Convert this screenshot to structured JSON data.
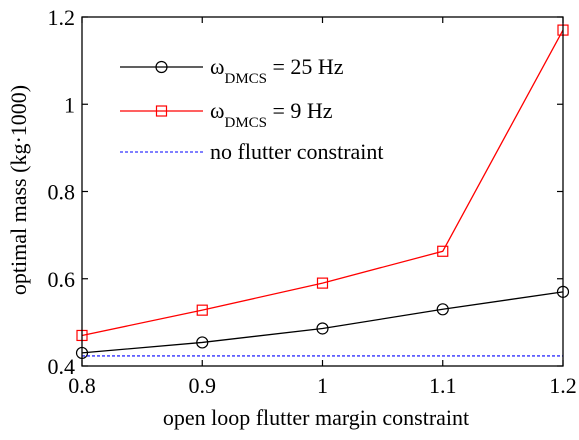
{
  "chart_data": {
    "type": "line",
    "xlabel": "open loop flutter margin constraint",
    "ylabel": "optimal mass (kg·1000)",
    "xlim": [
      0.8,
      1.2
    ],
    "ylim": [
      0.4,
      1.2
    ],
    "x_ticks": [
      "0.8",
      "0.9",
      "1",
      "1.1",
      "1.2"
    ],
    "y_ticks": [
      "0.4",
      "0.6",
      "0.8",
      "1",
      "1.2"
    ],
    "x": [
      0.8,
      0.9,
      1.0,
      1.1,
      1.2
    ],
    "grid": false,
    "legend_position": "top-left",
    "series": [
      {
        "name_main": "ω",
        "name_sub": "DMCS",
        "name_rest": " = 25 Hz",
        "values": [
          0.43,
          0.454,
          0.486,
          0.53,
          0.57
        ],
        "color": "#000000",
        "marker": "circle",
        "line_style": "solid"
      },
      {
        "name_main": "ω",
        "name_sub": "DMCS",
        "name_rest": " = 9 Hz",
        "values": [
          0.47,
          0.528,
          0.59,
          0.663,
          1.17
        ],
        "color": "#ff0000",
        "marker": "square",
        "line_style": "solid"
      },
      {
        "name": "no flutter constraint",
        "values": [
          0.423,
          0.423,
          0.423,
          0.423,
          0.423
        ],
        "color": "#0000ff",
        "marker": "none",
        "line_style": "dashed"
      }
    ]
  }
}
